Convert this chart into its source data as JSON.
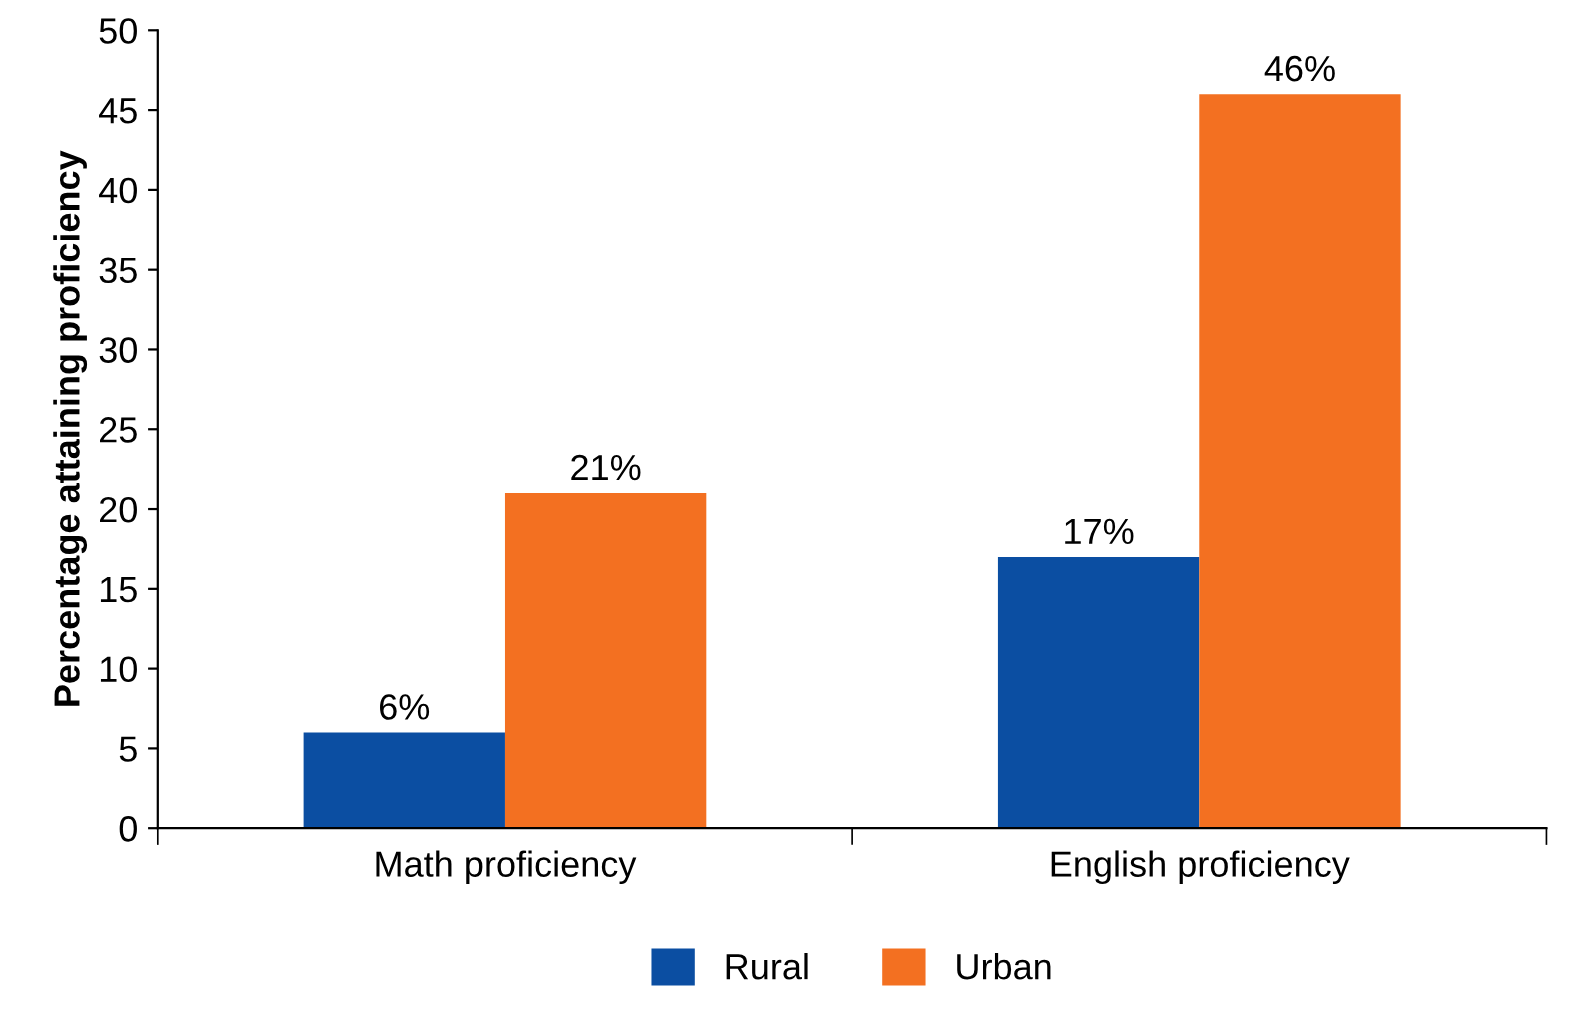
{
  "chart_data": {
    "type": "bar",
    "ylabel": "Percentage attaining proficiency",
    "categories": [
      "Math proficiency",
      "English proficiency"
    ],
    "series": [
      {
        "name": "Rural",
        "color": "#0b4ea2",
        "values": [
          6,
          17
        ],
        "value_labels": [
          "6%",
          "17%"
        ]
      },
      {
        "name": "Urban",
        "color": "#f37021",
        "values": [
          21,
          46
        ],
        "value_labels": [
          "21%",
          "46%"
        ]
      }
    ],
    "ylim": [
      0,
      50
    ],
    "yticks": [
      0,
      5,
      10,
      15,
      20,
      25,
      30,
      35,
      40,
      45,
      50
    ],
    "grid": false,
    "legend": "bottom"
  }
}
